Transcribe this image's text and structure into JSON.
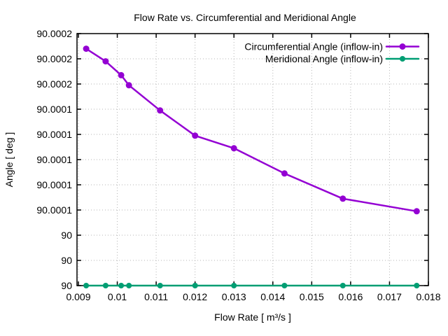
{
  "chart_data": {
    "type": "line",
    "title": "Flow Rate vs. Circumferential and Meridional Angle",
    "xlabel": "Flow Rate [ m³/s ]",
    "ylabel": "Angle [ deg ]",
    "xlim": [
      0.008964,
      0.018
    ],
    "ylim": [
      90.0,
      90.0002
    ],
    "grid": true,
    "legend_position": "top-right-inside",
    "x_ticks": [
      0.009,
      0.01,
      0.011,
      0.012,
      0.013,
      0.014,
      0.015,
      0.016,
      0.017,
      0.018
    ],
    "x_tick_labels": [
      "0.009",
      "0.01",
      "0.011",
      "0.012",
      "0.013",
      "0.014",
      "0.015",
      "0.016",
      "0.017",
      "0.018"
    ],
    "y_ticks": [
      90.0,
      90.00002,
      90.00004,
      90.00006,
      90.00008,
      90.0001,
      90.00012,
      90.00014,
      90.00016,
      90.00018,
      90.0002
    ],
    "y_tick_labels": [
      "90",
      "90",
      "90",
      "90.0001",
      "90.0001",
      "90.0001",
      "90.0001",
      "90.0001",
      "90.0002",
      "90.0002",
      "90.0002"
    ],
    "x": [
      0.0092,
      0.0097,
      0.0101,
      0.0103,
      0.0111,
      0.012,
      0.013,
      0.0143,
      0.0158,
      0.0177
    ],
    "series": [
      {
        "name": "Circumferential Angle (inflow-in)",
        "slug": "circumferential-angle",
        "color": "#9400d3",
        "values": [
          90.000188,
          90.000178,
          90.000167,
          90.000159,
          90.000139,
          90.000119,
          90.000109,
          90.000089,
          90.000069,
          90.000059
        ]
      },
      {
        "name": "Meridional Angle (inflow-in)",
        "slug": "meridional-angle",
        "color": "#009e73",
        "values": [
          90.0,
          90.0,
          90.0,
          90.0,
          90.0,
          90.0,
          90.0,
          90.0,
          90.0,
          90.0
        ]
      }
    ],
    "colors": {
      "background": "#ffffff",
      "border": "#000000",
      "grid": "#b4b4b4",
      "text": "#000000"
    }
  }
}
